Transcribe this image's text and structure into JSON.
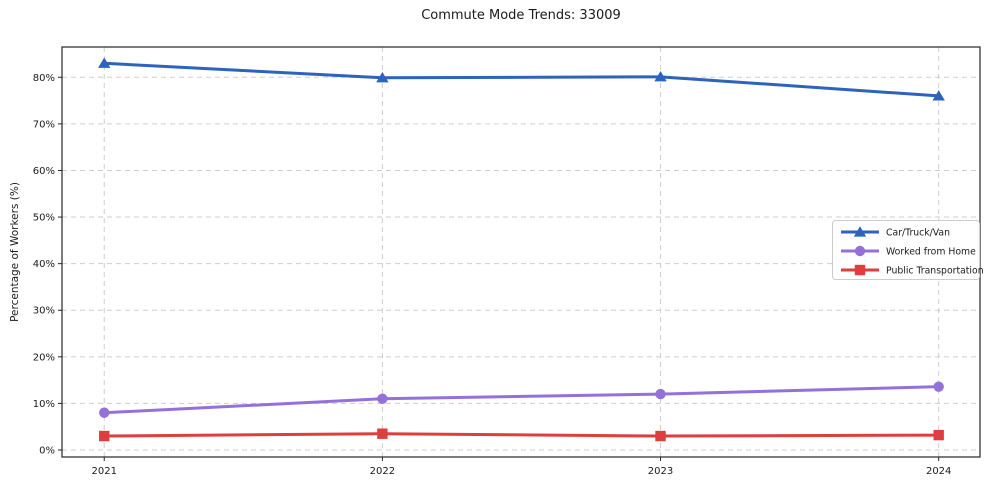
{
  "title": "Commute Mode Trends: 33009",
  "chart_data": {
    "type": "line",
    "title": "Commute Mode Trends: 33009",
    "categories": [
      "2021",
      "2022",
      "2023",
      "2024"
    ],
    "series": [
      {
        "name": "Car/Truck/Van",
        "color": "#2d62bd",
        "marker": "triangle",
        "values": [
          83,
          79.9,
          80.1,
          76
        ]
      },
      {
        "name": "Worked from Home",
        "color": "#9471d9",
        "marker": "circle",
        "values": [
          8,
          11,
          12,
          13.6
        ]
      },
      {
        "name": "Public Transportation",
        "color": "#df3e3e",
        "marker": "square",
        "values": [
          3,
          3.5,
          3,
          3.2
        ]
      }
    ],
    "xlabel": "",
    "ylabel": "Percentage of Workers (%)",
    "ylim": [
      -1.5,
      86.5
    ],
    "yticks": [
      0,
      10,
      20,
      30,
      40,
      50,
      60,
      70,
      80
    ],
    "ytick_suffix": "%",
    "grid": true,
    "grid_style": "dashed",
    "legend": {
      "position": "center-right",
      "labels": [
        "Car/Truck/Van",
        "Worked from Home",
        "Public Transportation"
      ]
    },
    "colors": {
      "background": "#ffffff",
      "grid": "#cdcdcd",
      "axis": "#262626",
      "text": "#1a1a1a",
      "legend_border": "#cccccc"
    }
  }
}
